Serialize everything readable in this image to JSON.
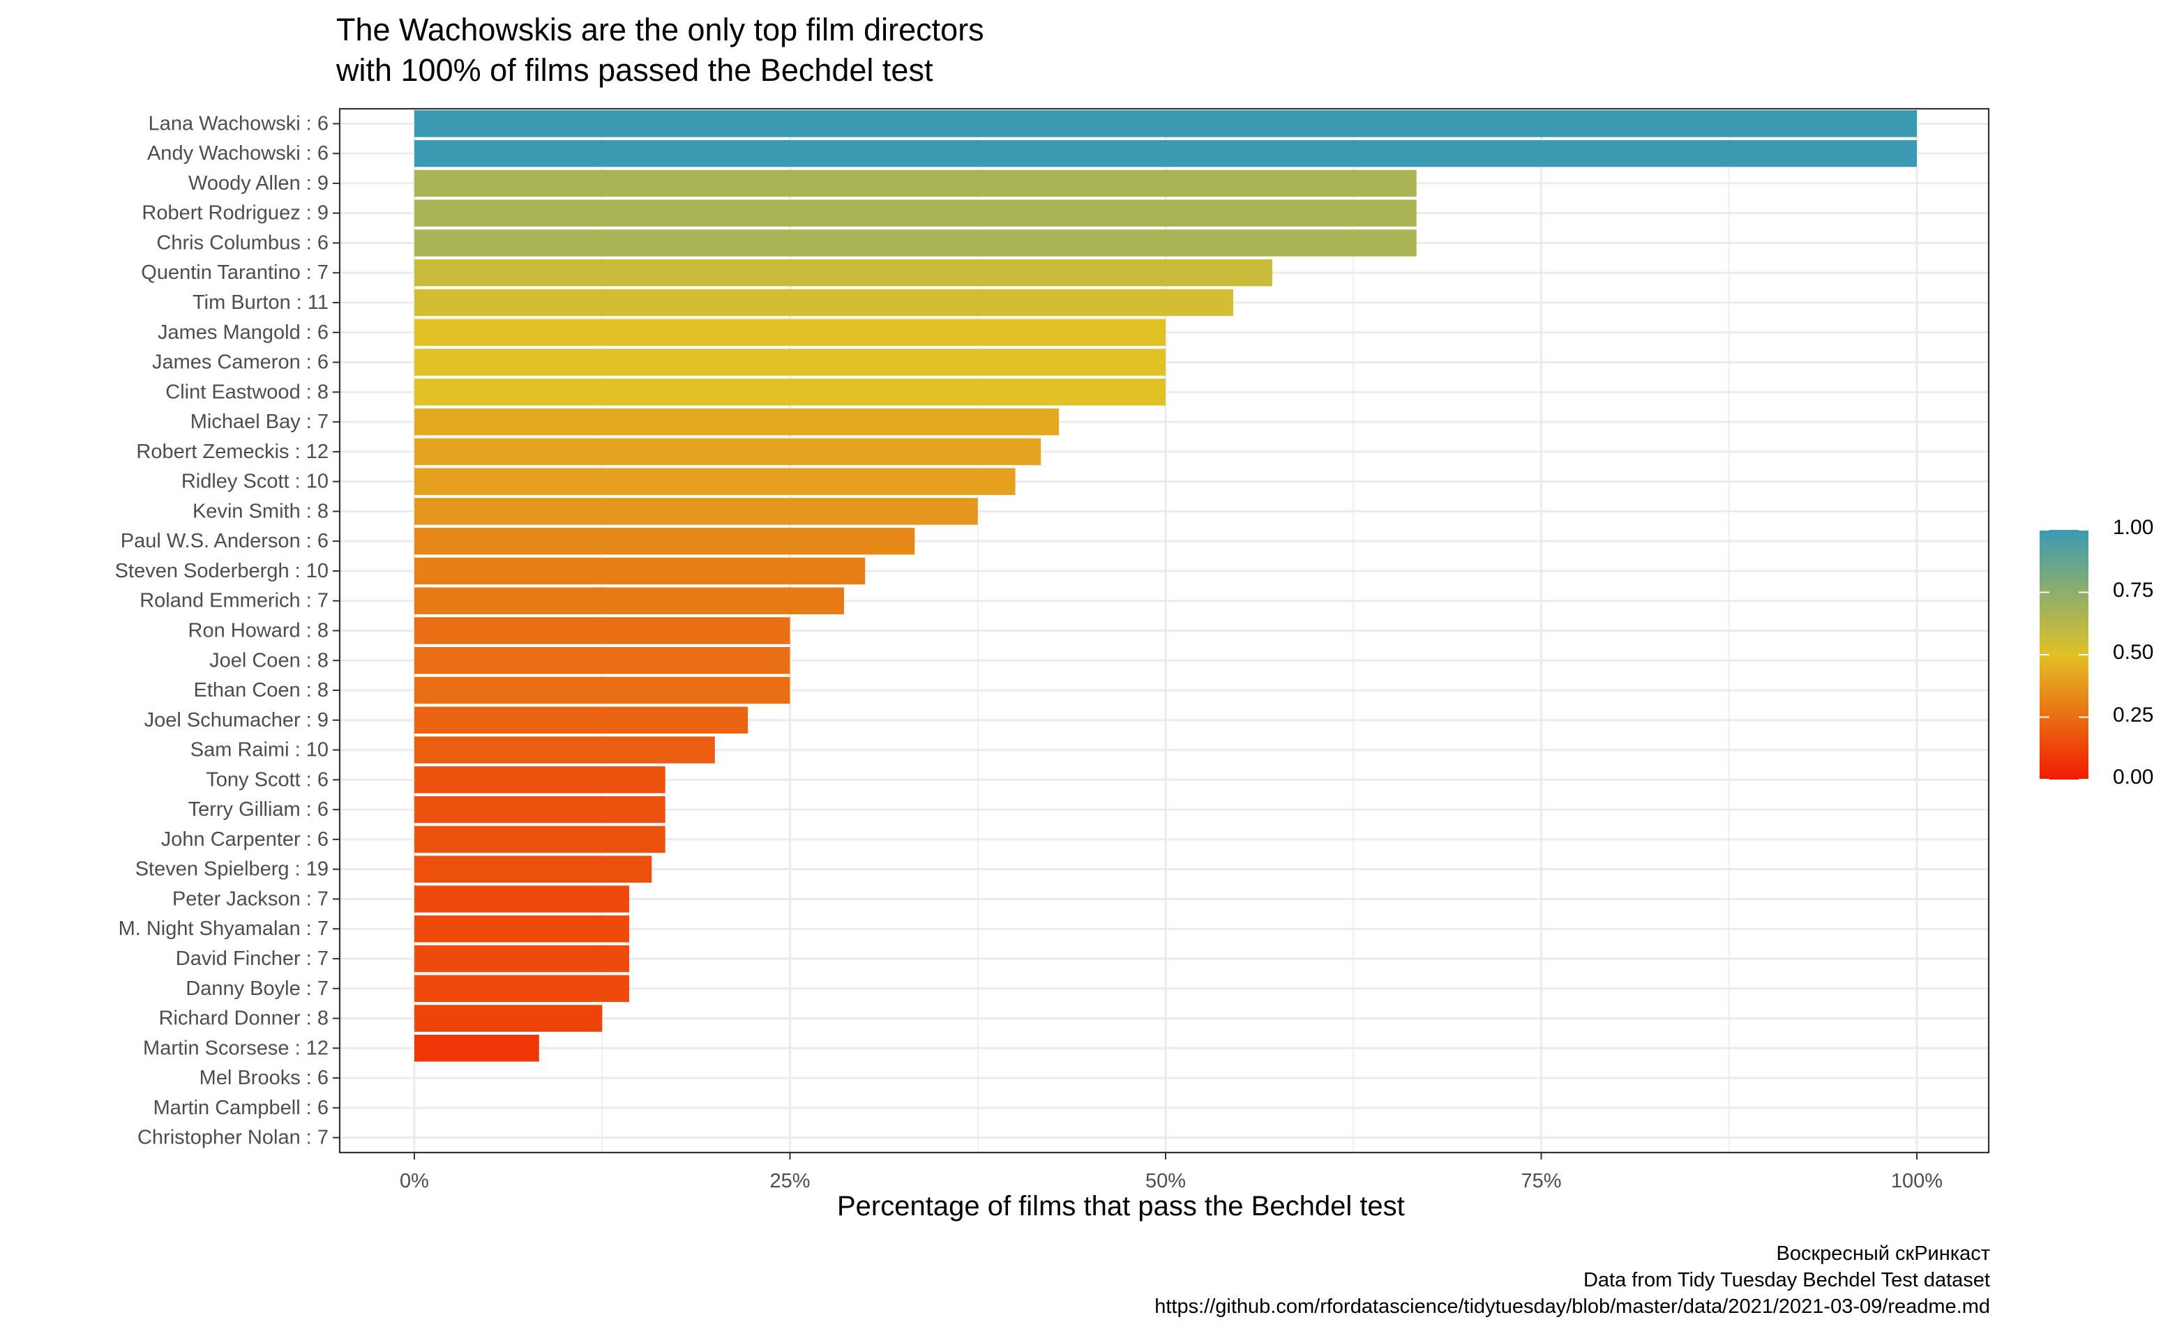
{
  "title_lines": [
    "The Wachowskis are the only top film directors",
    "with 100% of films passed the Bechdel test"
  ],
  "caption_lines": [
    "Воскресный скРинкаст",
    "Data from Tidy Tuesday Bechdel Test dataset",
    "https://github.com/rfordatascience/tidytuesday/blob/master/data/2021/2021-03-09/readme.md"
  ],
  "chart_data": {
    "type": "bar",
    "orientation": "horizontal",
    "title": "The Wachowskis are the only top film directors with 100% of films passed the Bechdel test",
    "xlabel": "Percentage of films that pass the Bechdel test",
    "ylabel": "",
    "xlim": [
      0,
      1
    ],
    "x_ticks": [
      "0%",
      "25%",
      "50%",
      "75%",
      "100%"
    ],
    "grid": true,
    "legend": {
      "placement": "right",
      "type": "colorbar",
      "ticks": [
        "0.00",
        "0.25",
        "0.50",
        "0.75",
        "1.00"
      ],
      "colors": {
        "low": "#f21a00",
        "mid": "#e1c126",
        "high": "#3b9ab2"
      }
    },
    "categories": [
      "Lana Wachowski : 6",
      "Andy Wachowski : 6",
      "Woody Allen : 9",
      "Robert Rodriguez : 9",
      "Chris Columbus : 6",
      "Quentin Tarantino : 7",
      "Tim Burton : 11",
      "James Mangold : 6",
      "James Cameron : 6",
      "Clint Eastwood : 8",
      "Michael Bay : 7",
      "Robert Zemeckis : 12",
      "Ridley Scott : 10",
      "Kevin Smith : 8",
      "Paul W.S. Anderson : 6",
      "Steven Soderbergh : 10",
      "Roland Emmerich : 7",
      "Ron Howard : 8",
      "Joel Coen : 8",
      "Ethan Coen : 8",
      "Joel Schumacher : 9",
      "Sam Raimi : 10",
      "Tony Scott : 6",
      "Terry Gilliam : 6",
      "John Carpenter : 6",
      "Steven Spielberg : 19",
      "Peter Jackson : 7",
      "M. Night Shyamalan : 7",
      "David Fincher : 7",
      "Danny Boyle : 7",
      "Richard Donner : 8",
      "Martin Scorsese : 12",
      "Mel Brooks : 6",
      "Martin Campbell : 6",
      "Christopher Nolan : 7"
    ],
    "values": [
      1.0,
      1.0,
      0.667,
      0.667,
      0.667,
      0.571,
      0.545,
      0.5,
      0.5,
      0.5,
      0.429,
      0.417,
      0.4,
      0.375,
      0.333,
      0.3,
      0.286,
      0.25,
      0.25,
      0.25,
      0.222,
      0.2,
      0.167,
      0.167,
      0.167,
      0.158,
      0.143,
      0.143,
      0.143,
      0.143,
      0.125,
      0.083,
      0.0,
      0.0,
      0.0
    ]
  }
}
